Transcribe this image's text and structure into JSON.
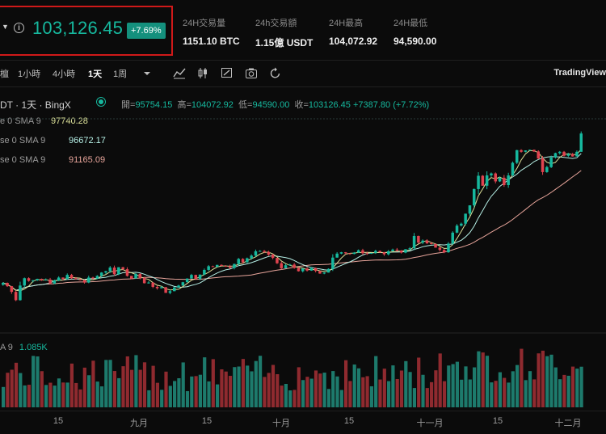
{
  "header": {
    "last_price": "103,126.45",
    "change_badge": "+7.69%",
    "stats": [
      {
        "label": "24H交易量",
        "value": "1151.10 BTC"
      },
      {
        "label": "24h交易額",
        "value": "1.15億 USDT"
      },
      {
        "label": "24H最高",
        "value": "104,072.92"
      },
      {
        "label": "24H最低",
        "value": "94,590.00"
      }
    ]
  },
  "toolbar": {
    "intervals": [
      "檀",
      "1小時",
      "4小時",
      "1天",
      "1周"
    ],
    "active_interval": "1天",
    "brand": "TradingView"
  },
  "legend": {
    "title": "DT · 1天 · BingX",
    "ohlc": {
      "open_label": "開=",
      "open": "95754.15",
      "high_label": "高=",
      "high": "104072.92",
      "low_label": "低=",
      "low": "94590.00",
      "close_label": "收=",
      "close": "103126.45",
      "change": "+7387.80 (+7.72%)"
    },
    "ma": [
      {
        "label": "e 0 SMA 9",
        "value": "97740.28",
        "color": "#dfe39a"
      },
      {
        "label": "se 0 SMA 9",
        "value": "96672.17",
        "color": "#b6f0e6"
      },
      {
        "label": "se 0 SMA 9",
        "value": "91165.09",
        "color": "#e8a59b"
      }
    ],
    "volume": {
      "label": "A 9",
      "value": "1.085K"
    }
  },
  "xaxis": {
    "ticks": [
      "15",
      "九月",
      "15",
      "十月",
      "15",
      "十一月",
      "15",
      "十二月"
    ]
  },
  "colors": {
    "up": "#16b89e",
    "down": "#e0434f",
    "vol_up": "#1d7a6c",
    "vol_down": "#8f2a2f",
    "highlight": "#d01919"
  },
  "chart_data": {
    "type": "candlestick",
    "ylim": [
      48000,
      108000
    ],
    "close": [
      58200,
      57200,
      55500,
      53000,
      57400,
      59600,
      58800,
      59000,
      59400,
      59000,
      59200,
      58000,
      58900,
      59800,
      59400,
      60600,
      59600,
      59300,
      59000,
      58300,
      59800,
      59500,
      60300,
      61300,
      61700,
      62800,
      60800,
      62900,
      62300,
      60300,
      59500,
      60900,
      59700,
      58100,
      58300,
      57000,
      56600,
      56900,
      55200,
      55700,
      56800,
      57400,
      58400,
      59500,
      60600,
      59400,
      60700,
      62100,
      63200,
      63000,
      63600,
      63300,
      63200,
      62700,
      63900,
      65400,
      64400,
      65600,
      66400,
      67700,
      67800,
      67500,
      66700,
      65700,
      64100,
      62600,
      63500,
      63700,
      62700,
      61700,
      62500,
      61900,
      62600,
      61800,
      61000,
      61300,
      62400,
      65800,
      67000,
      67400,
      67100,
      66900,
      67300,
      68000,
      67100,
      67000,
      67200,
      67800,
      67400,
      66800,
      67700,
      68200,
      67900,
      67300,
      68300,
      68600,
      72300,
      70300,
      70900,
      70100,
      69900,
      68800,
      68100,
      67400,
      70000,
      73300,
      75400,
      76000,
      79000,
      81500,
      86400,
      90400,
      87400,
      90500,
      91100,
      88700,
      89800,
      87600,
      90500,
      94300,
      98100,
      97600,
      98000,
      98200,
      97700,
      95600,
      91500,
      93000,
      95900,
      97200,
      97600,
      96400,
      96900,
      96200,
      97600,
      103100
    ]
  }
}
